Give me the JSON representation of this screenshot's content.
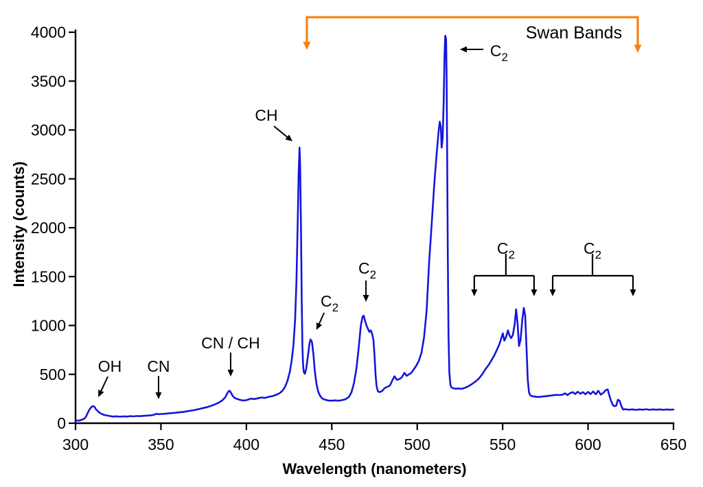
{
  "chart_data": {
    "type": "line",
    "title": "",
    "x": {
      "label": "Wavelength (nanometers)",
      "min": 300,
      "max": 650,
      "ticks": [
        300,
        350,
        400,
        450,
        500,
        550,
        600,
        650
      ]
    },
    "y": {
      "label": "Intensity (counts)",
      "min": 0,
      "max": 4000,
      "ticks": [
        0,
        500,
        1000,
        1500,
        2000,
        2500,
        3000,
        3500,
        4000
      ]
    },
    "grid": false,
    "legend": false,
    "series": [
      {
        "color": "#1414DC",
        "points": [
          [
            300,
            25
          ],
          [
            301,
            28
          ],
          [
            302,
            26
          ],
          [
            303,
            32
          ],
          [
            304,
            38
          ],
          [
            305,
            45
          ],
          [
            306,
            62
          ],
          [
            307,
            100
          ],
          [
            308,
            135
          ],
          [
            309,
            160
          ],
          [
            310,
            175
          ],
          [
            310.8,
            172
          ],
          [
            311.5,
            158
          ],
          [
            312,
            140
          ],
          [
            313,
            125
          ],
          [
            314,
            108
          ],
          [
            315,
            98
          ],
          [
            316,
            90
          ],
          [
            317,
            84
          ],
          [
            318,
            80
          ],
          [
            320,
            74
          ],
          [
            322,
            68
          ],
          [
            324,
            71
          ],
          [
            326,
            66
          ],
          [
            328,
            70
          ],
          [
            330,
            68
          ],
          [
            332,
            72
          ],
          [
            334,
            70
          ],
          [
            336,
            74
          ],
          [
            338,
            72
          ],
          [
            340,
            76
          ],
          [
            342,
            78
          ],
          [
            344,
            80
          ],
          [
            346,
            86
          ],
          [
            347.5,
            97
          ],
          [
            348.5,
            92
          ],
          [
            350,
            95
          ],
          [
            352,
            96
          ],
          [
            354,
            100
          ],
          [
            356,
            103
          ],
          [
            358,
            106
          ],
          [
            360,
            110
          ],
          [
            362,
            114
          ],
          [
            364,
            118
          ],
          [
            366,
            124
          ],
          [
            368,
            130
          ],
          [
            370,
            136
          ],
          [
            372,
            144
          ],
          [
            374,
            152
          ],
          [
            376,
            160
          ],
          [
            378,
            170
          ],
          [
            380,
            182
          ],
          [
            382,
            196
          ],
          [
            384,
            212
          ],
          [
            386,
            235
          ],
          [
            387.5,
            262
          ],
          [
            388.5,
            295
          ],
          [
            389.5,
            325
          ],
          [
            390.3,
            332
          ],
          [
            391,
            310
          ],
          [
            392,
            280
          ],
          [
            393,
            262
          ],
          [
            394,
            252
          ],
          [
            395,
            246
          ],
          [
            396,
            240
          ],
          [
            397,
            236
          ],
          [
            398,
            233
          ],
          [
            399,
            234
          ],
          [
            400,
            236
          ],
          [
            401.5,
            245
          ],
          [
            403,
            252
          ],
          [
            404.5,
            247
          ],
          [
            406,
            252
          ],
          [
            407.5,
            258
          ],
          [
            409,
            263
          ],
          [
            410.5,
            258
          ],
          [
            412,
            264
          ],
          [
            413.5,
            272
          ],
          [
            415,
            276
          ],
          [
            416.5,
            284
          ],
          [
            418,
            295
          ],
          [
            419.5,
            308
          ],
          [
            421,
            330
          ],
          [
            422.5,
            368
          ],
          [
            424,
            430
          ],
          [
            425.5,
            530
          ],
          [
            426.5,
            640
          ],
          [
            427.5,
            790
          ],
          [
            428.5,
            1050
          ],
          [
            429.3,
            1450
          ],
          [
            430,
            2000
          ],
          [
            430.6,
            2550
          ],
          [
            431.1,
            2820
          ],
          [
            431.5,
            2640
          ],
          [
            432,
            1950
          ],
          [
            432.4,
            1250
          ],
          [
            432.8,
            780
          ],
          [
            433.2,
            590
          ],
          [
            433.6,
            525
          ],
          [
            434.2,
            505
          ],
          [
            435,
            555
          ],
          [
            436,
            680
          ],
          [
            437,
            820
          ],
          [
            437.6,
            857
          ],
          [
            438.4,
            830
          ],
          [
            439.2,
            715
          ],
          [
            440,
            545
          ],
          [
            441,
            405
          ],
          [
            442,
            325
          ],
          [
            443,
            285
          ],
          [
            444,
            260
          ],
          [
            445,
            248
          ],
          [
            446.5,
            238
          ],
          [
            448,
            232
          ],
          [
            450,
            230
          ],
          [
            452,
            234
          ],
          [
            454,
            230
          ],
          [
            456,
            236
          ],
          [
            458,
            245
          ],
          [
            460,
            268
          ],
          [
            461.5,
            315
          ],
          [
            463,
            410
          ],
          [
            464.5,
            570
          ],
          [
            465.8,
            780
          ],
          [
            467,
            1000
          ],
          [
            468,
            1090
          ],
          [
            468.7,
            1100
          ],
          [
            469.5,
            1045
          ],
          [
            470.3,
            1000
          ],
          [
            471.2,
            965
          ],
          [
            472,
            935
          ],
          [
            472.8,
            950
          ],
          [
            473.6,
            915
          ],
          [
            474.4,
            850
          ],
          [
            475,
            700
          ],
          [
            475.6,
            500
          ],
          [
            476.2,
            380
          ],
          [
            477,
            325
          ],
          [
            478,
            318
          ],
          [
            479.5,
            330
          ],
          [
            481,
            360
          ],
          [
            482.5,
            372
          ],
          [
            484,
            385
          ],
          [
            485.5,
            440
          ],
          [
            486.7,
            480
          ],
          [
            488,
            445
          ],
          [
            489.5,
            450
          ],
          [
            491,
            470
          ],
          [
            492.5,
            515
          ],
          [
            493.8,
            485
          ],
          [
            495,
            498
          ],
          [
            496.5,
            515
          ],
          [
            498,
            550
          ],
          [
            499.5,
            590
          ],
          [
            501,
            640
          ],
          [
            502.5,
            720
          ],
          [
            504,
            880
          ],
          [
            505.5,
            1150
          ],
          [
            507,
            1650
          ],
          [
            508.5,
            2050
          ],
          [
            510,
            2450
          ],
          [
            511.5,
            2780
          ],
          [
            512.5,
            2980
          ],
          [
            513.2,
            3085
          ],
          [
            513.8,
            3030
          ],
          [
            514.3,
            2820
          ],
          [
            514.9,
            2920
          ],
          [
            515.5,
            3300
          ],
          [
            516,
            3750
          ],
          [
            516.4,
            3965
          ],
          [
            516.9,
            3930
          ],
          [
            517.2,
            3550
          ],
          [
            517.5,
            2800
          ],
          [
            517.9,
            1700
          ],
          [
            518.3,
            900
          ],
          [
            518.8,
            520
          ],
          [
            519.4,
            395
          ],
          [
            520,
            368
          ],
          [
            521,
            358
          ],
          [
            522.5,
            352
          ],
          [
            524,
            356
          ],
          [
            526,
            352
          ],
          [
            528,
            362
          ],
          [
            530,
            378
          ],
          [
            532,
            400
          ],
          [
            534,
            425
          ],
          [
            536,
            455
          ],
          [
            538,
            500
          ],
          [
            540,
            555
          ],
          [
            542,
            600
          ],
          [
            543.5,
            645
          ],
          [
            545,
            690
          ],
          [
            546.5,
            745
          ],
          [
            548,
            805
          ],
          [
            549.2,
            870
          ],
          [
            550.1,
            920
          ],
          [
            551,
            845
          ],
          [
            552,
            880
          ],
          [
            553.1,
            950
          ],
          [
            554,
            900
          ],
          [
            555,
            870
          ],
          [
            556,
            905
          ],
          [
            557,
            1010
          ],
          [
            557.9,
            1165
          ],
          [
            558.8,
            1010
          ],
          [
            559.6,
            790
          ],
          [
            560.5,
            855
          ],
          [
            561.5,
            1060
          ],
          [
            562.4,
            1180
          ],
          [
            563.2,
            1100
          ],
          [
            564,
            760
          ],
          [
            564.7,
            450
          ],
          [
            565.4,
            315
          ],
          [
            566.2,
            285
          ],
          [
            567.5,
            275
          ],
          [
            569,
            272
          ],
          [
            571,
            268
          ],
          [
            573,
            272
          ],
          [
            575,
            276
          ],
          [
            577,
            280
          ],
          [
            579,
            285
          ],
          [
            581,
            290
          ],
          [
            583,
            288
          ],
          [
            585,
            292
          ],
          [
            586.5,
            305
          ],
          [
            588,
            288
          ],
          [
            589.5,
            308
          ],
          [
            591,
            318
          ],
          [
            592.5,
            298
          ],
          [
            594,
            322
          ],
          [
            595.5,
            302
          ],
          [
            597,
            318
          ],
          [
            598.5,
            296
          ],
          [
            600,
            320
          ],
          [
            601.5,
            298
          ],
          [
            603,
            325
          ],
          [
            604.5,
            296
          ],
          [
            606,
            332
          ],
          [
            607.5,
            292
          ],
          [
            609,
            312
          ],
          [
            610.5,
            340
          ],
          [
            611.5,
            345
          ],
          [
            612.5,
            280
          ],
          [
            613.5,
            225
          ],
          [
            614.5,
            185
          ],
          [
            615.5,
            175
          ],
          [
            616.5,
            180
          ],
          [
            617.5,
            240
          ],
          [
            618.5,
            230
          ],
          [
            619.5,
            175
          ],
          [
            620.5,
            140
          ],
          [
            622,
            143
          ],
          [
            624,
            138
          ],
          [
            626,
            142
          ],
          [
            628,
            136
          ],
          [
            630,
            142
          ],
          [
            632,
            138
          ],
          [
            634,
            143
          ],
          [
            636,
            137
          ],
          [
            638,
            142
          ],
          [
            640,
            138
          ],
          [
            642,
            142
          ],
          [
            644,
            137
          ],
          [
            646,
            141
          ],
          [
            648,
            138
          ],
          [
            650,
            140
          ]
        ]
      }
    ],
    "annotations": [
      {
        "label": "OH",
        "label_nm": 320.1,
        "label_counts": 582,
        "arrow_from_nm": 318.9,
        "arrow_from_counts": 477,
        "arrow_to_nm": 313.3,
        "arrow_to_counts": 267
      },
      {
        "label": "CN",
        "label_nm": 348.6,
        "label_counts": 582,
        "arrow_from_nm": 348.6,
        "arrow_from_counts": 484,
        "arrow_to_nm": 348.6,
        "arrow_to_counts": 246
      },
      {
        "label": "CN / CH",
        "label_nm": 390.8,
        "label_counts": 821,
        "arrow_from_nm": 390.8,
        "arrow_from_counts": 723,
        "arrow_to_nm": 390.8,
        "arrow_to_counts": 477
      },
      {
        "label": "CH",
        "label_nm": 411.7,
        "label_counts": 3151,
        "arrow_from_nm": 416.1,
        "arrow_from_counts": 3039,
        "arrow_to_nm": 427.0,
        "arrow_to_counts": 2884
      },
      {
        "label": "C₂",
        "label_nm": 448.7,
        "label_counts": 1249,
        "arrow_from_nm": 445.5,
        "arrow_from_counts": 1130,
        "arrow_to_nm": 441.0,
        "arrow_to_counts": 954
      },
      {
        "label": "C₂",
        "label_nm": 470.8,
        "label_counts": 1586,
        "arrow_from_nm": 470.0,
        "arrow_from_counts": 1460,
        "arrow_to_nm": 470.0,
        "arrow_to_counts": 1242
      },
      {
        "label": "C₂",
        "label_nm": 547.9,
        "label_counts": 3811,
        "arrow_from_nm": 538.7,
        "arrow_from_counts": 3825,
        "arrow_to_nm": 525.0,
        "arrow_to_counts": 3825
      }
    ],
    "band_brackets": [
      {
        "label": "C₂",
        "label_nm": 551.9,
        "label_counts": 1789,
        "from_nm": 533.4,
        "to_nm": 568.4,
        "bar_counts": 1509,
        "stem_top_counts": 1733,
        "arrow_tip_counts": 1298
      },
      {
        "label": "C₂",
        "label_nm": 602.6,
        "label_counts": 1789,
        "from_nm": 579.3,
        "to_nm": 626.3,
        "bar_counts": 1509,
        "stem_top_counts": 1733,
        "arrow_tip_counts": 1298
      }
    ],
    "swan_bands": {
      "label": "Swan Bands",
      "color": "#F8810D",
      "from_nm": 435.4,
      "to_nm": 629.1,
      "bar_counts": 4154,
      "left_arrow_tip_counts": 3818,
      "right_arrow_tip_counts": 3789,
      "label_nm": 591.7,
      "label_counts": 4000
    },
    "axis_color": "#000000"
  }
}
